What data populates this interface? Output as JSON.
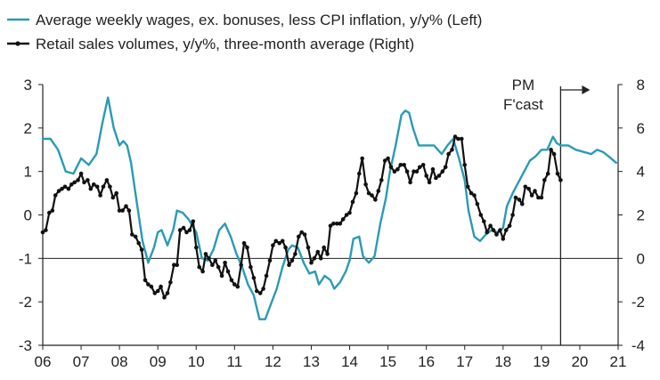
{
  "chart_data": {
    "type": "line",
    "x_axis": {
      "min": 2006,
      "max": 2021,
      "tick_values": [
        2006,
        2007,
        2008,
        2009,
        2010,
        2011,
        2012,
        2013,
        2014,
        2015,
        2016,
        2017,
        2018,
        2019,
        2020,
        2021
      ],
      "tick_labels": [
        "06",
        "07",
        "08",
        "09",
        "10",
        "11",
        "12",
        "13",
        "14",
        "15",
        "16",
        "17",
        "18",
        "19",
        "20",
        "21"
      ]
    },
    "y_left": {
      "min": -3,
      "max": 3,
      "ticks": [
        -3,
        -2,
        -1,
        0,
        1,
        2,
        3
      ],
      "tick_labels": [
        "-3",
        "-2",
        "-1",
        "0",
        "1",
        "2",
        "3"
      ]
    },
    "y_right": {
      "min": -4,
      "max": 8,
      "ticks": [
        -4,
        -2,
        0,
        2,
        4,
        6,
        8
      ],
      "tick_labels": [
        "-4",
        "-2",
        "0",
        "2",
        "4",
        "6",
        "8"
      ]
    },
    "reference_line": {
      "axis": "left",
      "value": -1
    },
    "forecast_line_x": 2019.5,
    "annotation": {
      "line1": "PM",
      "line2": "F'cast"
    },
    "colors": {
      "wages": "#2a9bb5",
      "retail": "#111111",
      "axis": "#222222"
    },
    "series": [
      {
        "name": "Average weekly wages, ex. bonuses, less CPI inflation, y/y% (Left)",
        "axis": "left",
        "color": "#2a9bb5",
        "marker": "none",
        "points": [
          [
            2006.0,
            1.75
          ],
          [
            2006.2,
            1.75
          ],
          [
            2006.4,
            1.5
          ],
          [
            2006.6,
            1.0
          ],
          [
            2006.8,
            0.95
          ],
          [
            2007.0,
            1.3
          ],
          [
            2007.2,
            1.15
          ],
          [
            2007.4,
            1.4
          ],
          [
            2007.55,
            2.1
          ],
          [
            2007.7,
            2.7
          ],
          [
            2007.85,
            2.0
          ],
          [
            2008.0,
            1.6
          ],
          [
            2008.1,
            1.7
          ],
          [
            2008.2,
            1.6
          ],
          [
            2008.3,
            1.2
          ],
          [
            2008.45,
            0.3
          ],
          [
            2008.6,
            -0.6
          ],
          [
            2008.75,
            -1.1
          ],
          [
            2008.9,
            -0.75
          ],
          [
            2009.0,
            -0.4
          ],
          [
            2009.1,
            -0.35
          ],
          [
            2009.25,
            -0.7
          ],
          [
            2009.4,
            -0.35
          ],
          [
            2009.5,
            0.1
          ],
          [
            2009.65,
            0.05
          ],
          [
            2009.8,
            -0.1
          ],
          [
            2010.0,
            -0.4
          ],
          [
            2010.15,
            -1.0
          ],
          [
            2010.3,
            -1.05
          ],
          [
            2010.45,
            -0.8
          ],
          [
            2010.6,
            -0.35
          ],
          [
            2010.75,
            -0.2
          ],
          [
            2010.9,
            -0.5
          ],
          [
            2011.05,
            -0.9
          ],
          [
            2011.2,
            -1.2
          ],
          [
            2011.35,
            -1.6
          ],
          [
            2011.5,
            -1.85
          ],
          [
            2011.65,
            -2.4
          ],
          [
            2011.8,
            -2.4
          ],
          [
            2011.95,
            -2.05
          ],
          [
            2012.1,
            -1.7
          ],
          [
            2012.25,
            -1.2
          ],
          [
            2012.4,
            -0.8
          ],
          [
            2012.5,
            -0.7
          ],
          [
            2012.65,
            -0.75
          ],
          [
            2012.8,
            -1.1
          ],
          [
            2012.95,
            -1.35
          ],
          [
            2013.1,
            -1.3
          ],
          [
            2013.2,
            -1.6
          ],
          [
            2013.35,
            -1.4
          ],
          [
            2013.5,
            -1.5
          ],
          [
            2013.6,
            -1.7
          ],
          [
            2013.75,
            -1.55
          ],
          [
            2013.9,
            -1.3
          ],
          [
            2014.0,
            -1.05
          ],
          [
            2014.1,
            -0.55
          ],
          [
            2014.25,
            -0.5
          ],
          [
            2014.35,
            -0.95
          ],
          [
            2014.5,
            -1.1
          ],
          [
            2014.65,
            -0.95
          ],
          [
            2014.8,
            -0.2
          ],
          [
            2014.95,
            0.4
          ],
          [
            2015.05,
            1.0
          ],
          [
            2015.2,
            1.6
          ],
          [
            2015.35,
            2.3
          ],
          [
            2015.45,
            2.4
          ],
          [
            2015.55,
            2.35
          ],
          [
            2015.65,
            2.0
          ],
          [
            2015.8,
            1.6
          ],
          [
            2016.0,
            1.6
          ],
          [
            2016.2,
            1.6
          ],
          [
            2016.4,
            1.4
          ],
          [
            2016.55,
            1.6
          ],
          [
            2016.7,
            1.75
          ],
          [
            2016.85,
            1.3
          ],
          [
            2017.0,
            0.8
          ],
          [
            2017.1,
            0.1
          ],
          [
            2017.25,
            -0.5
          ],
          [
            2017.4,
            -0.6
          ],
          [
            2017.55,
            -0.45
          ],
          [
            2017.7,
            -0.35
          ],
          [
            2017.85,
            -0.4
          ],
          [
            2018.0,
            -0.3
          ],
          [
            2018.1,
            0.2
          ],
          [
            2018.25,
            0.5
          ],
          [
            2018.4,
            0.75
          ],
          [
            2018.55,
            1.0
          ],
          [
            2018.7,
            1.25
          ],
          [
            2018.85,
            1.35
          ],
          [
            2019.0,
            1.5
          ],
          [
            2019.15,
            1.5
          ],
          [
            2019.3,
            1.8
          ],
          [
            2019.4,
            1.65
          ],
          [
            2019.5,
            1.6
          ],
          [
            2019.7,
            1.6
          ],
          [
            2019.9,
            1.5
          ],
          [
            2020.1,
            1.45
          ],
          [
            2020.3,
            1.4
          ],
          [
            2020.45,
            1.5
          ],
          [
            2020.6,
            1.45
          ],
          [
            2020.75,
            1.35
          ],
          [
            2020.95,
            1.2
          ]
        ]
      },
      {
        "name": "Retail sales volumes, y/y%, three-month average (Right)",
        "axis": "right",
        "color": "#111111",
        "marker": "dot",
        "points": [
          [
            2006.0,
            1.2
          ],
          [
            2006.08,
            1.3
          ],
          [
            2006.17,
            2.1
          ],
          [
            2006.25,
            2.2
          ],
          [
            2006.33,
            2.9
          ],
          [
            2006.42,
            3.1
          ],
          [
            2006.5,
            3.2
          ],
          [
            2006.58,
            3.3
          ],
          [
            2006.67,
            3.2
          ],
          [
            2006.75,
            3.4
          ],
          [
            2006.83,
            3.5
          ],
          [
            2006.92,
            3.6
          ],
          [
            2007.0,
            3.9
          ],
          [
            2007.08,
            3.5
          ],
          [
            2007.17,
            3.6
          ],
          [
            2007.25,
            3.2
          ],
          [
            2007.33,
            3.4
          ],
          [
            2007.42,
            3.3
          ],
          [
            2007.5,
            2.9
          ],
          [
            2007.58,
            3.3
          ],
          [
            2007.67,
            3.6
          ],
          [
            2007.75,
            3.3
          ],
          [
            2007.83,
            2.8
          ],
          [
            2007.92,
            3.0
          ],
          [
            2008.0,
            2.2
          ],
          [
            2008.08,
            2.2
          ],
          [
            2008.17,
            2.4
          ],
          [
            2008.25,
            2.2
          ],
          [
            2008.33,
            1.1
          ],
          [
            2008.42,
            1.0
          ],
          [
            2008.5,
            0.7
          ],
          [
            2008.58,
            0.4
          ],
          [
            2008.67,
            -1.0
          ],
          [
            2008.75,
            -1.2
          ],
          [
            2008.83,
            -1.3
          ],
          [
            2008.92,
            -1.6
          ],
          [
            2009.0,
            -1.5
          ],
          [
            2009.08,
            -1.3
          ],
          [
            2009.17,
            -1.8
          ],
          [
            2009.25,
            -1.6
          ],
          [
            2009.33,
            -1.1
          ],
          [
            2009.42,
            -0.3
          ],
          [
            2009.5,
            -0.3
          ],
          [
            2009.58,
            1.3
          ],
          [
            2009.67,
            1.4
          ],
          [
            2009.75,
            1.2
          ],
          [
            2009.83,
            1.3
          ],
          [
            2009.92,
            1.7
          ],
          [
            2010.0,
            0.5
          ],
          [
            2010.08,
            -0.4
          ],
          [
            2010.17,
            -0.6
          ],
          [
            2010.25,
            0.2
          ],
          [
            2010.33,
            0.0
          ],
          [
            2010.42,
            -0.3
          ],
          [
            2010.5,
            -0.1
          ],
          [
            2010.58,
            -0.4
          ],
          [
            2010.67,
            -0.8
          ],
          [
            2010.75,
            -0.2
          ],
          [
            2010.83,
            -0.6
          ],
          [
            2010.92,
            -1.0
          ],
          [
            2011.0,
            -1.2
          ],
          [
            2011.08,
            -1.3
          ],
          [
            2011.17,
            -0.3
          ],
          [
            2011.25,
            0.7
          ],
          [
            2011.33,
            0.5
          ],
          [
            2011.42,
            -0.4
          ],
          [
            2011.5,
            -0.9
          ],
          [
            2011.58,
            -1.5
          ],
          [
            2011.67,
            -1.6
          ],
          [
            2011.75,
            -1.4
          ],
          [
            2011.83,
            -0.8
          ],
          [
            2011.92,
            -0.1
          ],
          [
            2012.0,
            0.6
          ],
          [
            2012.08,
            0.8
          ],
          [
            2012.17,
            0.7
          ],
          [
            2012.25,
            0.8
          ],
          [
            2012.33,
            0.5
          ],
          [
            2012.42,
            -0.3
          ],
          [
            2012.5,
            -0.1
          ],
          [
            2012.58,
            0.2
          ],
          [
            2012.67,
            1.0
          ],
          [
            2012.75,
            1.2
          ],
          [
            2012.83,
            1.1
          ],
          [
            2012.92,
            0.5
          ],
          [
            2013.0,
            -0.2
          ],
          [
            2013.08,
            0.0
          ],
          [
            2013.17,
            0.3
          ],
          [
            2013.25,
            0.0
          ],
          [
            2013.33,
            0.5
          ],
          [
            2013.42,
            0.2
          ],
          [
            2013.5,
            1.5
          ],
          [
            2013.58,
            1.6
          ],
          [
            2013.67,
            1.6
          ],
          [
            2013.75,
            1.6
          ],
          [
            2013.83,
            1.8
          ],
          [
            2013.92,
            2.0
          ],
          [
            2014.0,
            2.1
          ],
          [
            2014.08,
            2.6
          ],
          [
            2014.17,
            3.0
          ],
          [
            2014.25,
            3.9
          ],
          [
            2014.33,
            4.6
          ],
          [
            2014.42,
            3.4
          ],
          [
            2014.5,
            3.0
          ],
          [
            2014.58,
            2.9
          ],
          [
            2014.67,
            2.7
          ],
          [
            2014.75,
            3.1
          ],
          [
            2014.83,
            3.6
          ],
          [
            2014.92,
            4.5
          ],
          [
            2015.0,
            4.6
          ],
          [
            2015.08,
            4.2
          ],
          [
            2015.17,
            4.0
          ],
          [
            2015.25,
            4.1
          ],
          [
            2015.33,
            4.3
          ],
          [
            2015.42,
            4.3
          ],
          [
            2015.5,
            4.0
          ],
          [
            2015.58,
            3.5
          ],
          [
            2015.67,
            4.0
          ],
          [
            2015.75,
            4.0
          ],
          [
            2015.83,
            4.2
          ],
          [
            2015.92,
            4.3
          ],
          [
            2016.0,
            3.8
          ],
          [
            2016.08,
            3.5
          ],
          [
            2016.17,
            4.1
          ],
          [
            2016.25,
            3.7
          ],
          [
            2016.33,
            3.8
          ],
          [
            2016.42,
            4.0
          ],
          [
            2016.5,
            4.2
          ],
          [
            2016.58,
            4.8
          ],
          [
            2016.67,
            5.0
          ],
          [
            2016.75,
            5.6
          ],
          [
            2016.83,
            5.5
          ],
          [
            2016.92,
            5.5
          ],
          [
            2017.0,
            4.3
          ],
          [
            2017.08,
            3.3
          ],
          [
            2017.17,
            3.0
          ],
          [
            2017.25,
            2.9
          ],
          [
            2017.33,
            2.5
          ],
          [
            2017.42,
            2.0
          ],
          [
            2017.5,
            1.7
          ],
          [
            2017.58,
            1.2
          ],
          [
            2017.67,
            1.5
          ],
          [
            2017.75,
            1.3
          ],
          [
            2017.83,
            1.1
          ],
          [
            2017.92,
            1.3
          ],
          [
            2018.0,
            0.9
          ],
          [
            2018.08,
            1.3
          ],
          [
            2018.17,
            1.5
          ],
          [
            2018.25,
            2.0
          ],
          [
            2018.33,
            2.8
          ],
          [
            2018.42,
            2.7
          ],
          [
            2018.5,
            2.5
          ],
          [
            2018.58,
            3.3
          ],
          [
            2018.67,
            3.2
          ],
          [
            2018.75,
            2.9
          ],
          [
            2018.83,
            3.1
          ],
          [
            2018.92,
            2.8
          ],
          [
            2019.0,
            2.8
          ],
          [
            2019.08,
            3.6
          ],
          [
            2019.17,
            3.9
          ],
          [
            2019.25,
            5.0
          ],
          [
            2019.33,
            4.8
          ],
          [
            2019.42,
            3.9
          ],
          [
            2019.5,
            3.6
          ]
        ]
      }
    ]
  }
}
